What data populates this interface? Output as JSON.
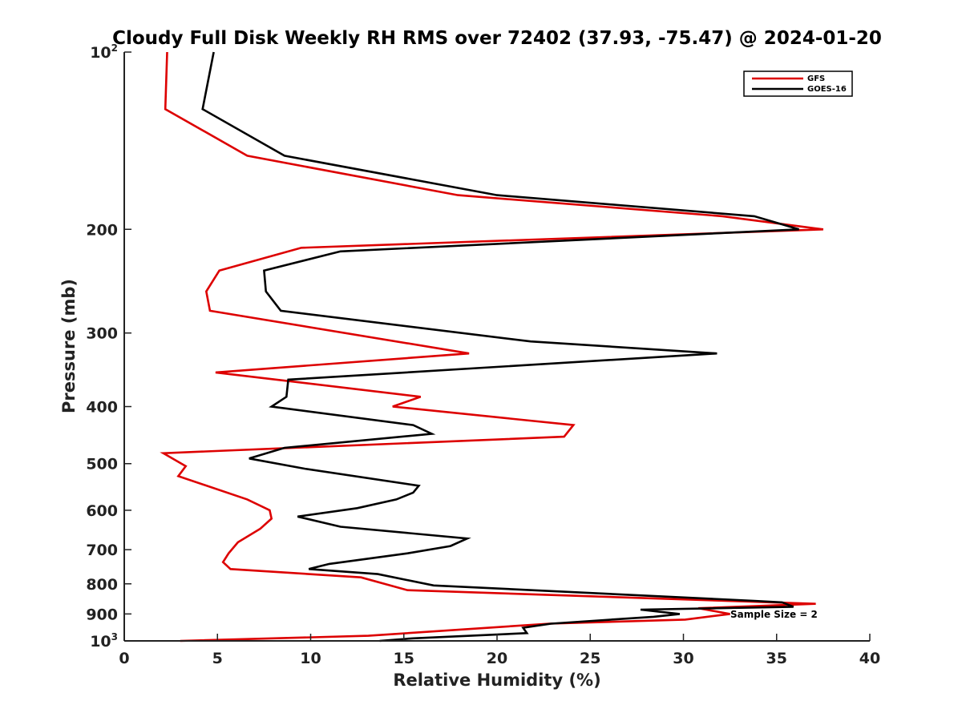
{
  "chart_data": {
    "type": "line",
    "title": "Cloudy Full Disk Weekly RH RMS over 72402 (37.93, -75.47) @ 2024-01-20",
    "xlabel": "Relative Humidity (%)",
    "ylabel": "Pressure (mb)",
    "xlim": [
      0,
      40
    ],
    "ylim": [
      100,
      1000
    ],
    "y_scale": "log",
    "y_reversed": true,
    "x_ticks": [
      0,
      5,
      10,
      15,
      20,
      25,
      30,
      35,
      40
    ],
    "y_ticks": [
      {
        "value": 100,
        "label": "10",
        "sup": "2"
      },
      {
        "value": 200,
        "label": "200"
      },
      {
        "value": 300,
        "label": "300"
      },
      {
        "value": 400,
        "label": "400"
      },
      {
        "value": 500,
        "label": "500"
      },
      {
        "value": 600,
        "label": "600"
      },
      {
        "value": 700,
        "label": "700"
      },
      {
        "value": 800,
        "label": "800"
      },
      {
        "value": 900,
        "label": "900"
      },
      {
        "value": 1000,
        "label": "10",
        "sup": "3"
      }
    ],
    "grid": false,
    "legend_position": "top-right",
    "series": [
      {
        "name": "GFS",
        "color": "#dd0000",
        "points": [
          [
            2.3,
            100
          ],
          [
            2.2,
            125
          ],
          [
            6.6,
            150
          ],
          [
            17.9,
            175
          ],
          [
            32.1,
            190
          ],
          [
            37.5,
            200
          ],
          [
            9.5,
            215
          ],
          [
            5.1,
            235
          ],
          [
            4.4,
            255
          ],
          [
            4.6,
            275
          ],
          [
            18.5,
            325
          ],
          [
            4.9,
            350
          ],
          [
            15.9,
            385
          ],
          [
            14.4,
            400
          ],
          [
            24.1,
            430
          ],
          [
            23.6,
            450
          ],
          [
            2.1,
            480
          ],
          [
            3.3,
            505
          ],
          [
            2.9,
            525
          ],
          [
            6.6,
            575
          ],
          [
            7.8,
            600
          ],
          [
            7.9,
            620
          ],
          [
            7.3,
            645
          ],
          [
            6.1,
            680
          ],
          [
            5.6,
            710
          ],
          [
            5.3,
            735
          ],
          [
            5.7,
            755
          ],
          [
            12.7,
            780
          ],
          [
            15.2,
            820
          ],
          [
            37.1,
            865
          ],
          [
            30.8,
            880
          ],
          [
            32.5,
            900
          ],
          [
            30.1,
            920
          ],
          [
            22.8,
            935
          ],
          [
            13.1,
            980
          ],
          [
            3.0,
            1000
          ]
        ]
      },
      {
        "name": "GOES-16",
        "color": "#000000",
        "points": [
          [
            4.8,
            100
          ],
          [
            4.2,
            125
          ],
          [
            8.6,
            150
          ],
          [
            20.0,
            175
          ],
          [
            33.8,
            190
          ],
          [
            36.2,
            200
          ],
          [
            11.6,
            218
          ],
          [
            7.5,
            235
          ],
          [
            7.6,
            255
          ],
          [
            8.4,
            275
          ],
          [
            21.8,
            310
          ],
          [
            31.8,
            325
          ],
          [
            8.8,
            360
          ],
          [
            8.7,
            385
          ],
          [
            7.9,
            400
          ],
          [
            15.5,
            430
          ],
          [
            16.5,
            445
          ],
          [
            8.6,
            470
          ],
          [
            6.7,
            490
          ],
          [
            9.7,
            510
          ],
          [
            15.8,
            545
          ],
          [
            15.5,
            560
          ],
          [
            14.6,
            575
          ],
          [
            12.5,
            595
          ],
          [
            9.3,
            615
          ],
          [
            11.6,
            640
          ],
          [
            18.4,
            670
          ],
          [
            17.5,
            690
          ],
          [
            15.2,
            710
          ],
          [
            11.0,
            740
          ],
          [
            9.9,
            755
          ],
          [
            13.6,
            770
          ],
          [
            16.6,
            805
          ],
          [
            33.8,
            855
          ],
          [
            35.3,
            860
          ],
          [
            35.9,
            875
          ],
          [
            27.7,
            885
          ],
          [
            29.8,
            900
          ],
          [
            28.4,
            910
          ],
          [
            22.9,
            935
          ],
          [
            21.4,
            950
          ],
          [
            21.6,
            970
          ],
          [
            15.5,
            990
          ],
          [
            13.7,
            1000
          ]
        ]
      }
    ],
    "annotations": [
      "Sample Size = 2"
    ]
  }
}
